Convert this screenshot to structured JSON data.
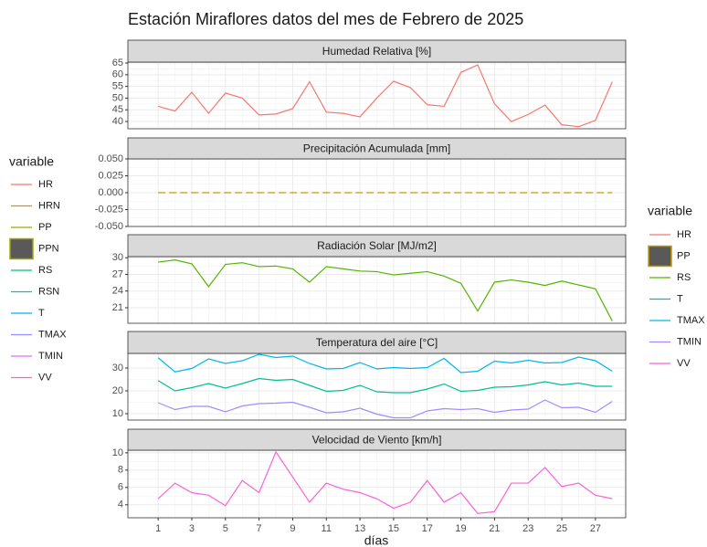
{
  "title": "Estación Miraflores datos del mes de Febrero de 2025",
  "xlabel": "días",
  "legends": [
    {
      "title": "variable",
      "position": "left",
      "entries": [
        {
          "name": "HR",
          "color": "#F8766D",
          "key": "line"
        },
        {
          "name": "HRN",
          "color": "#D89000",
          "key": "line"
        },
        {
          "name": "PP",
          "color": "#A3A500",
          "key": "line"
        },
        {
          "name": "PPN",
          "color": "#A3A500",
          "key": "box"
        },
        {
          "name": "RS",
          "color": "#00BF7D",
          "key": "line"
        },
        {
          "name": "RSN",
          "color": "#00BFC4",
          "key": "line"
        },
        {
          "name": "T",
          "color": "#00B0F6",
          "key": "line"
        },
        {
          "name": "TMAX",
          "color": "#9590FF",
          "key": "line"
        },
        {
          "name": "TMIN",
          "color": "#E76BF3",
          "key": "line"
        },
        {
          "name": "VV",
          "color": "#FF62BC",
          "key": "line"
        }
      ]
    },
    {
      "title": "variable",
      "position": "right",
      "entries": [
        {
          "name": "HR",
          "color": "#F8766D",
          "key": "line"
        },
        {
          "name": "PP",
          "color": "#C49A00",
          "key": "box"
        },
        {
          "name": "RS",
          "color": "#53B400",
          "key": "line"
        },
        {
          "name": "T",
          "color": "#00C094",
          "key": "line"
        },
        {
          "name": "TMAX",
          "color": "#00B6EB",
          "key": "line"
        },
        {
          "name": "TMIN",
          "color": "#A58AFF",
          "key": "line"
        },
        {
          "name": "VV",
          "color": "#FB61D7",
          "key": "line"
        }
      ]
    }
  ],
  "chart_data": [
    {
      "type": "line",
      "title": "Humedad Relativa [%]",
      "x": [
        1,
        2,
        3,
        4,
        5,
        6,
        7,
        8,
        9,
        10,
        11,
        12,
        13,
        14,
        15,
        16,
        17,
        18,
        19,
        20,
        21,
        22,
        23,
        24,
        25,
        26,
        27,
        28
      ],
      "xlim": [
        -0.8,
        28.8
      ],
      "xticks": [
        1,
        3,
        5,
        7,
        9,
        11,
        13,
        15,
        17,
        19,
        21,
        23,
        25,
        27
      ],
      "ylim": [
        36.9,
        65.4
      ],
      "yticks": [
        40,
        45,
        50,
        55,
        60,
        65
      ],
      "grid": true,
      "series": [
        {
          "name": "HR",
          "color": "#F8766D",
          "values": [
            46.5,
            44.5,
            52.5,
            43.5,
            52.2,
            50,
            42.8,
            43.2,
            45.5,
            57,
            44,
            43.5,
            42,
            50,
            57.2,
            54.5,
            47.2,
            46.5,
            61,
            64.2,
            47.5,
            40,
            43,
            47,
            38.6,
            37.8,
            40.5,
            57
          ]
        }
      ]
    },
    {
      "type": "line",
      "title": "Precipitación Acumulada [mm]",
      "x": [
        1,
        2,
        3,
        4,
        5,
        6,
        7,
        8,
        9,
        10,
        11,
        12,
        13,
        14,
        15,
        16,
        17,
        18,
        19,
        20,
        21,
        22,
        23,
        24,
        25,
        26,
        27,
        28
      ],
      "xlim": [
        -0.8,
        28.8
      ],
      "xticks": [
        1,
        3,
        5,
        7,
        9,
        11,
        13,
        15,
        17,
        19,
        21,
        23,
        25,
        27
      ],
      "ylim": [
        -0.05,
        0.05
      ],
      "yticks": [
        {
          "value": -0.05,
          "label": "-0.050"
        },
        {
          "value": -0.025,
          "label": "-0.025"
        },
        {
          "value": 0,
          "label": "0.000"
        },
        {
          "value": 0.025,
          "label": "0.025"
        },
        {
          "value": 0.05,
          "label": "0.050"
        }
      ],
      "grid": true,
      "series": [
        {
          "name": "PP",
          "color": "#C49A00",
          "linetype": "dashed",
          "values": [
            0,
            0,
            0,
            0,
            0,
            0,
            0,
            0,
            0,
            0,
            0,
            0,
            0,
            0,
            0,
            0,
            0,
            0,
            0,
            0,
            0,
            0,
            0,
            0,
            0,
            0,
            0,
            0
          ]
        }
      ]
    },
    {
      "type": "line",
      "title": "Radiación Solar [MJ/m2]",
      "x": [
        1,
        2,
        3,
        4,
        5,
        6,
        7,
        8,
        9,
        10,
        11,
        12,
        13,
        14,
        15,
        16,
        17,
        18,
        19,
        20,
        21,
        22,
        23,
        24,
        25,
        26,
        27,
        28
      ],
      "xlim": [
        -0.8,
        28.8
      ],
      "xticks": [
        1,
        3,
        5,
        7,
        9,
        11,
        13,
        15,
        17,
        19,
        21,
        23,
        25,
        27
      ],
      "ylim": [
        18.2,
        30.2
      ],
      "yticks": [
        21,
        24,
        27,
        30
      ],
      "grid": true,
      "series": [
        {
          "name": "RS",
          "color": "#53B400",
          "values": [
            29.2,
            29.6,
            28.9,
            24.8,
            28.8,
            29.1,
            28.4,
            28.5,
            28.0,
            25.6,
            28.4,
            28.0,
            27.6,
            27.5,
            26.9,
            27.2,
            27.5,
            26.7,
            25.4,
            20.4,
            25.6,
            26.0,
            25.6,
            25.0,
            25.8,
            25.1,
            24.4,
            18.6
          ]
        }
      ]
    },
    {
      "type": "line",
      "title": "Temperatura del aire [°C]",
      "x": [
        1,
        2,
        3,
        4,
        5,
        6,
        7,
        8,
        9,
        10,
        11,
        12,
        13,
        14,
        15,
        16,
        17,
        18,
        19,
        20,
        21,
        22,
        23,
        24,
        25,
        26,
        27,
        28
      ],
      "xlim": [
        -0.8,
        28.8
      ],
      "xticks": [
        1,
        3,
        5,
        7,
        9,
        11,
        13,
        15,
        17,
        19,
        21,
        23,
        25,
        27
      ],
      "ylim": [
        7.2,
        36.4
      ],
      "yticks": [
        10,
        20,
        30
      ],
      "grid": true,
      "series": [
        {
          "name": "T",
          "color": "#00C094",
          "values": [
            24.5,
            20.0,
            21.4,
            23.2,
            21.2,
            23.2,
            25.4,
            24.6,
            25.0,
            22.4,
            19.8,
            20.2,
            22.4,
            19.6,
            19.2,
            19.2,
            20.8,
            23.0,
            19.8,
            20.2,
            21.6,
            21.8,
            22.6,
            24.0,
            22.6,
            23.4,
            22.0,
            22.0
          ]
        },
        {
          "name": "TMAX",
          "color": "#00B6EB",
          "values": [
            34.5,
            28.3,
            29.8,
            34.0,
            32.0,
            33.2,
            36.0,
            34.6,
            35.2,
            32.0,
            29.6,
            29.8,
            32.4,
            29.6,
            30.2,
            29.8,
            30.2,
            34.2,
            28.0,
            28.6,
            33.0,
            32.2,
            33.4,
            32.2,
            32.4,
            34.8,
            33.2,
            28.6
          ]
        },
        {
          "name": "TMIN",
          "color": "#A58AFF",
          "values": [
            14.8,
            11.8,
            13.2,
            13.2,
            10.8,
            13.4,
            14.4,
            14.6,
            15.0,
            12.8,
            10.4,
            10.8,
            12.4,
            9.8,
            8.2,
            8.2,
            11.2,
            12.2,
            11.8,
            12.2,
            10.6,
            11.6,
            12.0,
            16.0,
            12.6,
            12.8,
            10.6,
            15.4
          ]
        }
      ]
    },
    {
      "type": "line",
      "title": "Velocidad de Viento [km/h]",
      "x": [
        1,
        2,
        3,
        4,
        5,
        6,
        7,
        8,
        9,
        10,
        11,
        12,
        13,
        14,
        15,
        16,
        17,
        18,
        19,
        20,
        21,
        22,
        23,
        24,
        25,
        26,
        27,
        28
      ],
      "xlim": [
        -0.8,
        28.8
      ],
      "xticks": [
        1,
        3,
        5,
        7,
        9,
        11,
        13,
        15,
        17,
        19,
        21,
        23,
        25,
        27
      ],
      "ylim": [
        2.5,
        10.3
      ],
      "yticks": [
        4,
        6,
        8,
        10
      ],
      "grid": true,
      "series": [
        {
          "name": "VV",
          "color": "#FB61D7",
          "values": [
            4.7,
            6.5,
            5.4,
            5.1,
            3.9,
            6.8,
            5.4,
            10.1,
            7.2,
            4.3,
            6.5,
            5.8,
            5.4,
            4.7,
            3.6,
            4.3,
            6.8,
            4.3,
            5.4,
            3.0,
            3.2,
            6.5,
            6.5,
            8.3,
            6.1,
            6.5,
            5.1,
            4.7
          ]
        }
      ]
    }
  ]
}
